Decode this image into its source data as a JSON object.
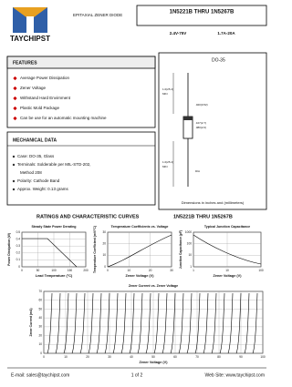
{
  "header": {
    "logo": "TAYCHIPST",
    "title": "1N5221B THRU 1N5267B",
    "subtitle": "EPITAXIAL ZENER DIODE",
    "voltage": "2.4V-75V",
    "current": "1.7A-20A"
  },
  "features": {
    "title": "FEATURES",
    "items": [
      "Average Power Dissipation",
      "Zener Voltage",
      "Withstand Hard Envirnment",
      "Plastic Mold Package",
      "Can be use for an automatic mounting machine"
    ]
  },
  "package": {
    "name": "DO-35",
    "dims": [
      "1.0(25.4)",
      "MIN",
      ".107(2.7)",
      ".080(2.0)",
      ".020(0.52)",
      "1.0(25.4)",
      "MIN",
      "DIA"
    ],
    "note": "Dimensions in inches and (millimeters)"
  },
  "mechanical": {
    "title": "MECHANICAL DATA",
    "items": [
      "Case: DO-35, Glass",
      "Terminals: Solderable per MIL-STD-202,",
      "Method 208",
      "Polarity: Cathode Band",
      "Approx. Weight: 0.13 grams"
    ]
  },
  "curves": {
    "title": "RATINGS AND CHARACTERISTIC CURVES",
    "part": "1N5221B  THRU  1N5267B",
    "charts": [
      {
        "title": "Steady State Power Derating",
        "xlabel": "Lead Temperature (°C)",
        "ylabel": "Power Dissipation (W)",
        "xticks": [
          "0",
          "50",
          "100",
          "150",
          "200"
        ],
        "yticks": [
          "0.5",
          "0.4",
          "0.3",
          "0.2",
          "0.1",
          "0"
        ]
      },
      {
        "title": "Temperature Coefficients vs. Voltage",
        "xlabel": "Zener Voltage (V)",
        "ylabel": "Temperature Coefficient (mV/°C)",
        "xticks": [
          "0",
          "10",
          "20",
          "30"
        ],
        "yticks": [
          "30",
          "20",
          "10",
          "0"
        ]
      },
      {
        "title": "Typical Junction Capacitance",
        "xlabel": "Zener Voltage (V)",
        "ylabel": "Junction Capacitance (pF)",
        "xticks": [
          "1",
          "10",
          "100"
        ],
        "yticks": [
          "1000",
          "100",
          "10",
          "1"
        ]
      },
      {
        "title": "Zener Current vs. Zener Voltage",
        "xlabel": "Zener Voltage (V)",
        "ylabel": "Zener Current (mA)",
        "xticks": [
          "0",
          "10",
          "20",
          "30",
          "40",
          "50",
          "60",
          "70",
          "80",
          "90",
          "100"
        ],
        "yticks": [
          "70",
          "60",
          "50",
          "40",
          "30",
          "20",
          "10",
          "0"
        ]
      }
    ]
  },
  "footer": {
    "email": "E-mail: sales@taychipst.com",
    "page": "1  of  2",
    "web": "Web Site: www.taychipst.com"
  }
}
